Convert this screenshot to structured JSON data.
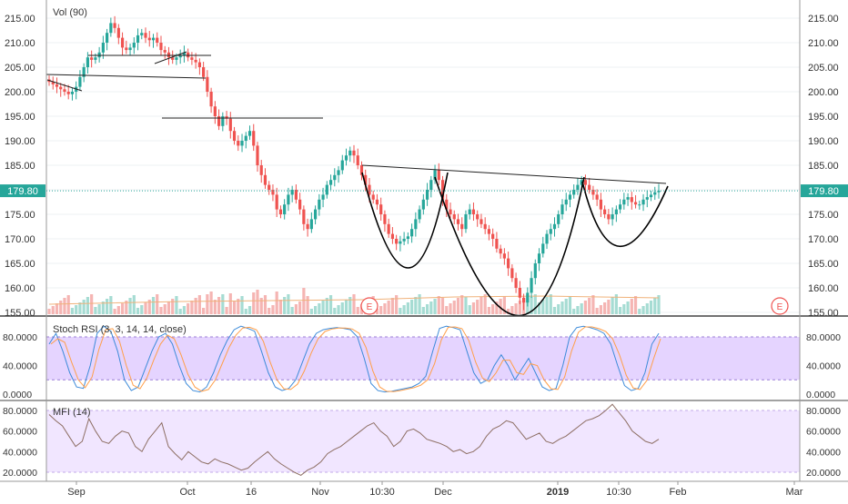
{
  "chart_data": [
    {
      "type": "candlestick",
      "title": "Vol (90)",
      "ylim": [
        155,
        218
      ],
      "yticks": [
        155,
        160,
        165,
        170,
        175,
        180,
        185,
        190,
        195,
        200,
        205,
        210,
        215
      ],
      "ytick_labels": [
        "155.00",
        "160.00",
        "165.00",
        "170.00",
        "175.00",
        "180.00",
        "185.00",
        "190.00",
        "195.00",
        "200.00",
        "205.00",
        "210.00",
        "215.00"
      ],
      "last_price": 179.8,
      "last_price_label": "179.80",
      "earnings_marker": "E",
      "colors": {
        "up": "#26a69a",
        "down": "#ef5350",
        "vol_up": "#a6dcd3",
        "vol_down": "#f5b5b3",
        "last_price": "#26a69a"
      },
      "patterns": "cup-and-handle / inverse head-and-shoulders drawn with black arcs and trendlines"
    },
    {
      "type": "line",
      "title": "Stoch RSI (3, 3, 14, 14, close)",
      "ylim": [
        0,
        100
      ],
      "yticks": [
        0,
        40,
        80
      ],
      "ytick_labels": [
        "0.0000",
        "40.0000",
        "80.0000"
      ],
      "band": [
        20,
        80
      ],
      "series": [
        {
          "color": "#3d8bd9"
        },
        {
          "color": "#ff9f4a"
        }
      ]
    },
    {
      "type": "line",
      "title": "MFI (14)",
      "ylim": [
        15,
        90
      ],
      "yticks": [
        20,
        40,
        60,
        80
      ],
      "ytick_labels": [
        "20.0000",
        "40.0000",
        "60.0000",
        "80.0000"
      ],
      "band": [
        20,
        80
      ],
      "series": [
        {
          "color": "#8d6e63"
        }
      ]
    }
  ],
  "x_axis": {
    "labels": [
      "Sep",
      "Oct",
      "16",
      "Nov",
      "10:30",
      "Dec",
      "2019",
      "10:30",
      "Feb",
      "Mar"
    ]
  }
}
